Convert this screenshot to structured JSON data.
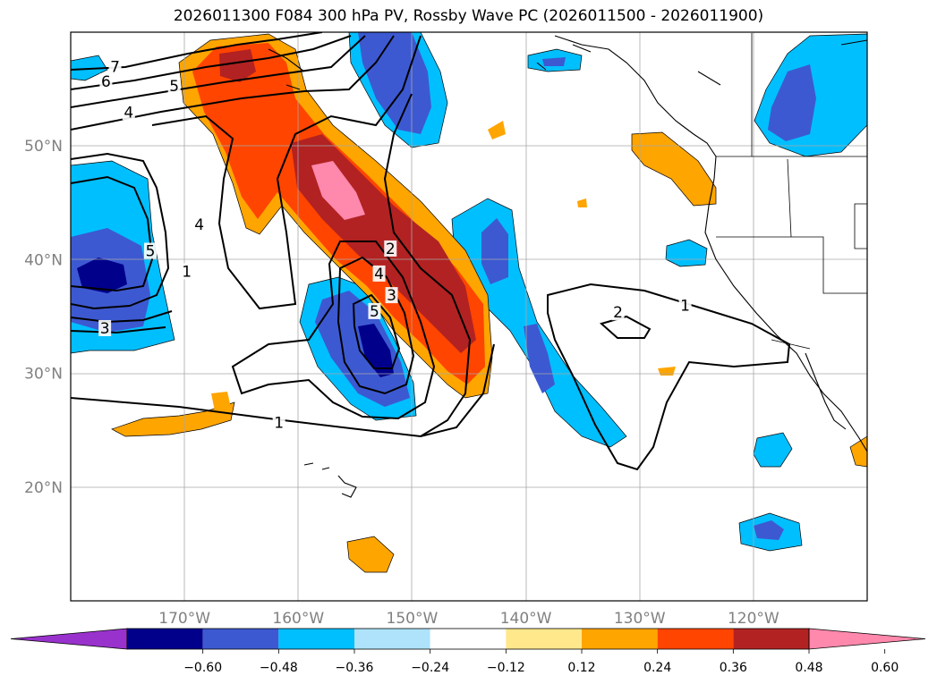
{
  "title": "2026011300 F084 300 hPa PV, Rossby Wave PC (2026011500 - 2026011900)",
  "map": {
    "lon_range": [
      -180,
      -110
    ],
    "lat_range": [
      10,
      60
    ],
    "lon_ticks": [
      {
        "value": -170,
        "label": "170°W"
      },
      {
        "value": -160,
        "label": "160°W"
      },
      {
        "value": -150,
        "label": "150°W"
      },
      {
        "value": -140,
        "label": "140°W"
      },
      {
        "value": -130,
        "label": "130°W"
      },
      {
        "value": -120,
        "label": "120°W"
      }
    ],
    "lat_ticks": [
      {
        "value": 20,
        "label": "20°N"
      },
      {
        "value": 30,
        "label": "30°N"
      },
      {
        "value": 40,
        "label": "40°N"
      },
      {
        "value": 50,
        "label": "50°N"
      }
    ],
    "contour_labels": [
      {
        "text": "7",
        "lon": -176.1,
        "lat": 56.9
      },
      {
        "text": "6",
        "lon": -176.9,
        "lat": 55.6
      },
      {
        "text": "5",
        "lon": -170.9,
        "lat": 55.2
      },
      {
        "text": "4",
        "lon": -174.9,
        "lat": 52.9
      },
      {
        "text": "4",
        "lon": -168.7,
        "lat": 43.0
      },
      {
        "text": "5",
        "lon": -173.0,
        "lat": 40.7
      },
      {
        "text": "3",
        "lon": -177.0,
        "lat": 33.9
      },
      {
        "text": "1",
        "lon": -169.8,
        "lat": 38.9
      },
      {
        "text": "2",
        "lon": -151.9,
        "lat": 40.9
      },
      {
        "text": "4",
        "lon": -152.9,
        "lat": 38.7
      },
      {
        "text": "3",
        "lon": -151.8,
        "lat": 36.8
      },
      {
        "text": "5",
        "lon": -153.3,
        "lat": 35.4
      },
      {
        "text": "1",
        "lon": -161.7,
        "lat": 25.6
      },
      {
        "text": "2",
        "lon": -131.9,
        "lat": 35.3
      },
      {
        "text": "1",
        "lon": -126.0,
        "lat": 35.9
      }
    ]
  },
  "colorbar": {
    "colors": [
      "#9932cc",
      "#00008b",
      "#3d59d1",
      "#00bfff",
      "#aee3fb",
      "#ffffff",
      "#ffe88b",
      "#ffa500",
      "#ff4500",
      "#b22222",
      "#ff88ad"
    ],
    "tick_labels": [
      "−0.60",
      "−0.48",
      "−0.36",
      "−0.24",
      "−0.12",
      "0.12",
      "0.24",
      "0.36",
      "0.48",
      "0.60"
    ]
  }
}
